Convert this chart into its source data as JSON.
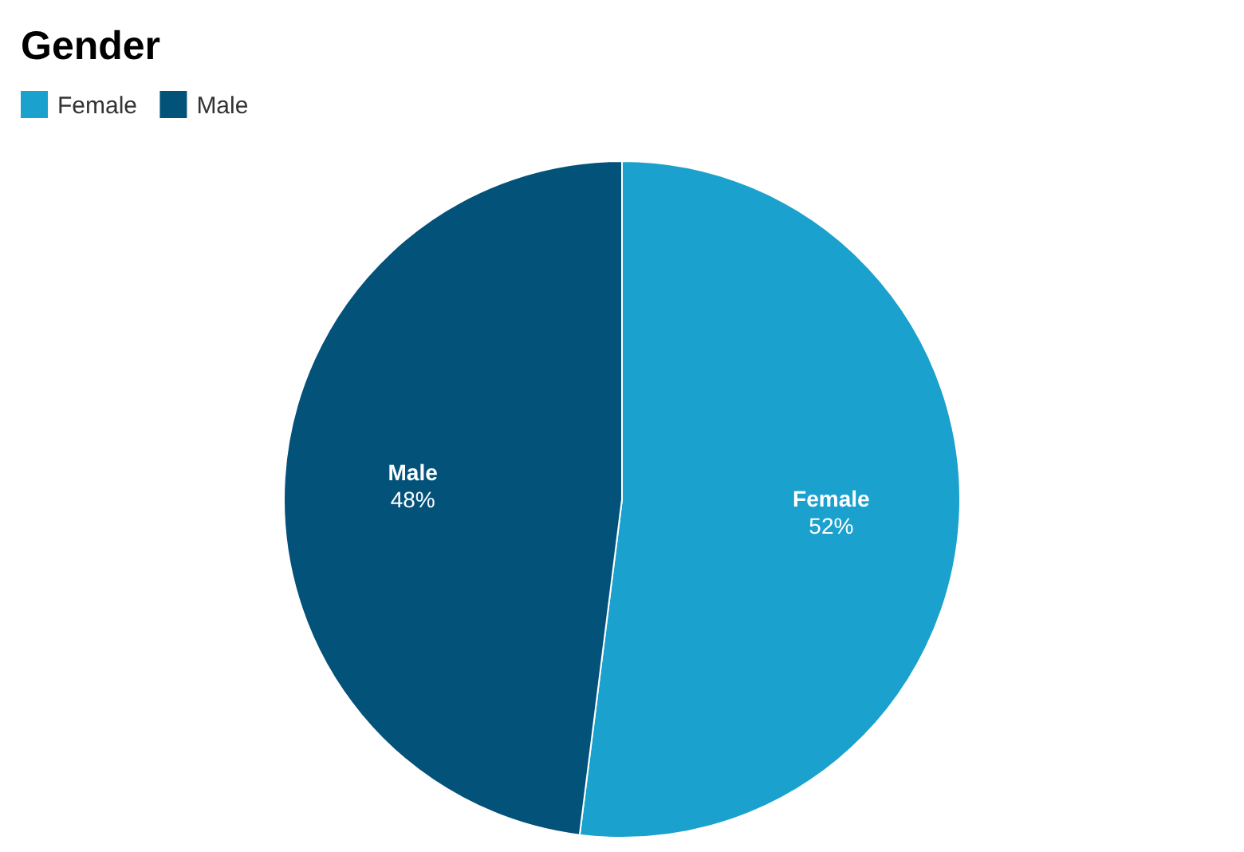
{
  "chart_data": {
    "type": "pie",
    "title": "Gender",
    "categories": [
      "Female",
      "Male"
    ],
    "values": [
      52,
      48
    ],
    "colors": [
      "#1aa1cd",
      "#03527a"
    ],
    "legend": "top left",
    "value_labels": [
      "52%",
      "48%"
    ]
  }
}
